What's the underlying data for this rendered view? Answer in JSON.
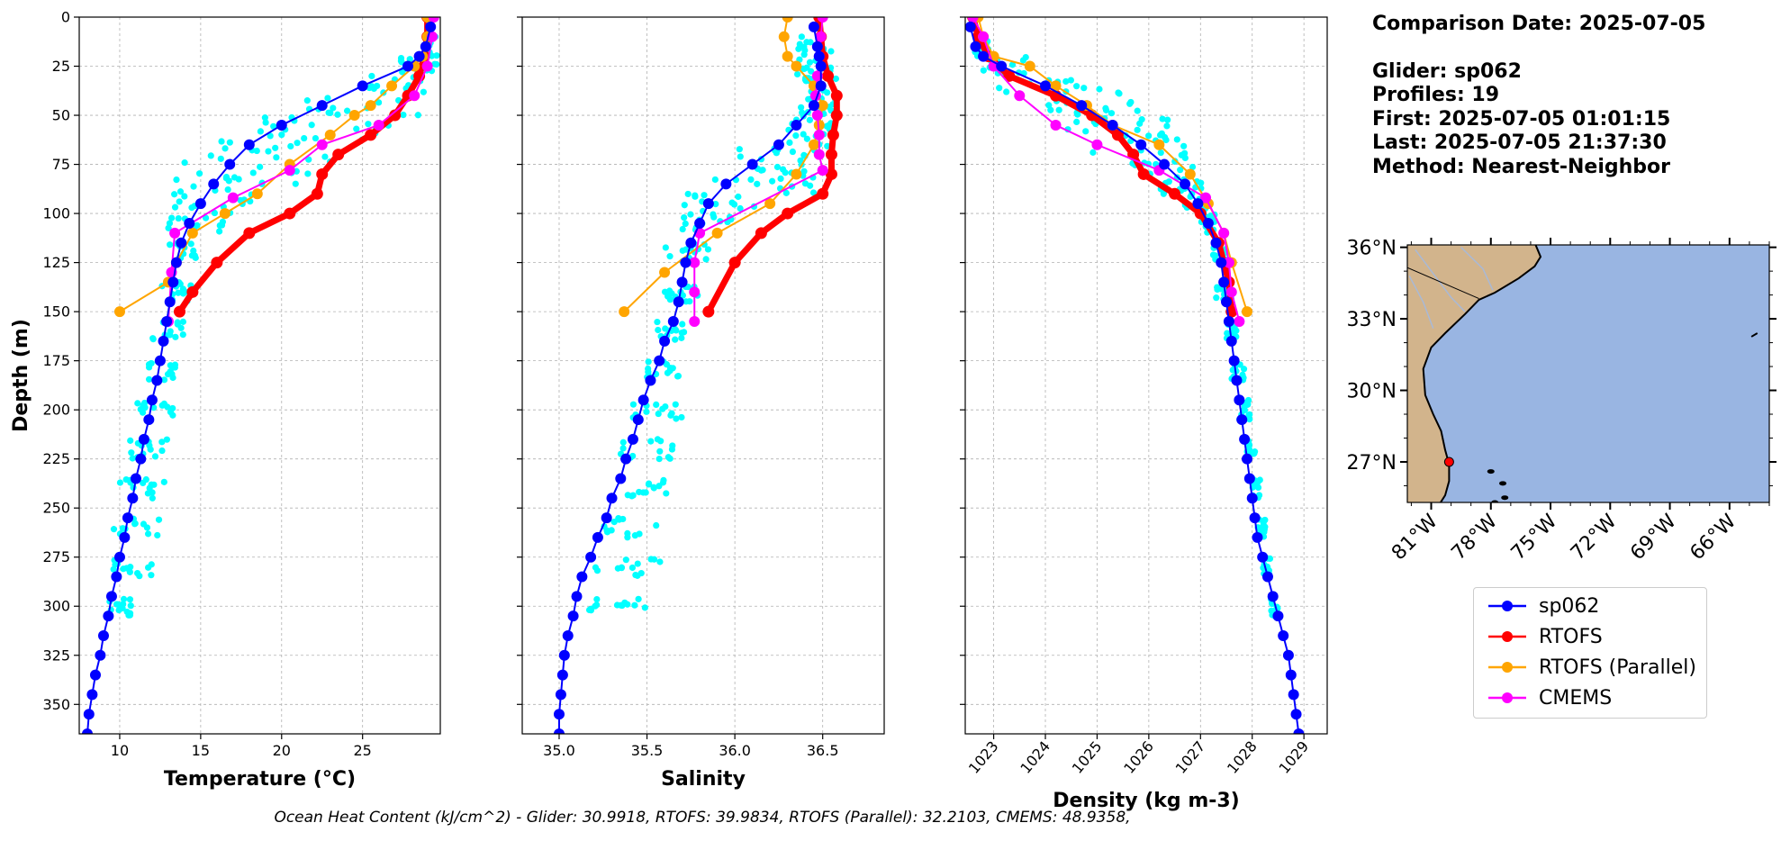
{
  "info": {
    "title": "Comparison Date: 2025-07-05",
    "glider": "Glider: sp062",
    "profiles": "Profiles: 19",
    "first": "First: 2025-07-05 01:01:15",
    "last": "Last: 2025-07-05 21:37:30",
    "method": "Method: Nearest-Neighbor"
  },
  "footer": "Ocean Heat Content (kJ/cm^2) - Glider: 30.9918,  RTOFS: 39.9834,  RTOFS (Parallel): 32.2103,  CMEMS: 48.9358,",
  "legend": [
    {
      "label": "sp062",
      "color": "#0000ff"
    },
    {
      "label": "RTOFS",
      "color": "#ff0000"
    },
    {
      "label": "RTOFS (Parallel)",
      "color": "#ffa500"
    },
    {
      "label": "CMEMS",
      "color": "#ff00ff"
    }
  ],
  "colors": {
    "raw": "#00ffff",
    "land": "#d2b48c",
    "ocean": "#99b5e2",
    "grid": "#b0b0b0"
  },
  "chart_data": [
    {
      "type": "line",
      "xlabel": "Temperature (°C)",
      "ylabel": "Depth (m)",
      "xlim": [
        7.5,
        29.8
      ],
      "ylim": [
        365,
        0
      ],
      "xticks": [
        10,
        15,
        20,
        25
      ],
      "yticks": [
        0,
        25,
        50,
        75,
        100,
        125,
        150,
        175,
        200,
        225,
        250,
        275,
        300,
        325,
        350
      ],
      "raw_envelope": {
        "depths": [
          15,
          25,
          35,
          45,
          55,
          65,
          75,
          85,
          95,
          105,
          120,
          140,
          160,
          180,
          200,
          220,
          240,
          260,
          280,
          300
        ],
        "min": [
          28.8,
          27.0,
          24.5,
          20.5,
          17.5,
          15.5,
          14.0,
          13.5,
          13.2,
          13.0,
          12.8,
          12.6,
          12.0,
          11.5,
          11.0,
          10.5,
          10.0,
          9.6,
          9.3,
          9.3
        ],
        "max": [
          29.6,
          29.6,
          29.5,
          28.5,
          27.0,
          26.0,
          23.0,
          21.0,
          18.5,
          16.5,
          15.0,
          14.5,
          14.0,
          13.5,
          13.3,
          13.0,
          12.8,
          12.5,
          12.0,
          10.8
        ]
      },
      "series": [
        {
          "name": "sp062",
          "x": [
            29.2,
            28.9,
            28.5,
            27.8,
            25.0,
            22.5,
            20.0,
            18.0,
            16.8,
            15.8,
            15.0,
            14.3,
            13.8,
            13.5,
            13.3,
            13.1,
            12.9,
            12.7,
            12.5,
            12.3,
            12.0,
            11.8,
            11.5,
            11.3,
            11.0,
            10.8,
            10.5,
            10.3,
            10.0,
            9.8,
            9.5,
            9.3,
            9.0,
            8.8,
            8.5,
            8.3,
            8.1,
            8.0,
            7.9
          ],
          "depth": [
            5,
            15,
            20,
            25,
            35,
            45,
            55,
            65,
            75,
            85,
            95,
            105,
            115,
            125,
            135,
            145,
            155,
            165,
            175,
            185,
            195,
            205,
            215,
            225,
            235,
            245,
            255,
            265,
            275,
            285,
            295,
            305,
            315,
            325,
            335,
            345,
            355,
            365,
            375
          ]
        },
        {
          "name": "RTOFS",
          "x": [
            29.0,
            29.0,
            28.8,
            28.5,
            27.8,
            27.0,
            25.5,
            23.5,
            22.5,
            22.2,
            20.5,
            18.0,
            16.0,
            14.5,
            13.7
          ],
          "depth": [
            0,
            10,
            20,
            30,
            40,
            50,
            60,
            70,
            80,
            90,
            100,
            110,
            125,
            140,
            150
          ]
        },
        {
          "name": "RTOFS (Parallel)",
          "x": [
            29.0,
            29.0,
            28.7,
            28.2,
            26.8,
            25.5,
            24.5,
            23.0,
            20.5,
            18.5,
            16.5,
            14.5,
            13.5,
            13.0,
            10.0
          ],
          "depth": [
            0,
            10,
            20,
            25,
            35,
            45,
            50,
            60,
            75,
            90,
            100,
            110,
            125,
            135,
            150
          ]
        },
        {
          "name": "CMEMS",
          "x": [
            29.4,
            29.3,
            29.0,
            28.2,
            26.0,
            22.5,
            20.5,
            17.0,
            13.4,
            13.2,
            13.0
          ],
          "depth": [
            0,
            10,
            25,
            40,
            55,
            65,
            78,
            92,
            110,
            130,
            155
          ]
        }
      ]
    },
    {
      "type": "line",
      "xlabel": "Salinity",
      "ylabel": "",
      "xlim": [
        34.79,
        36.85
      ],
      "ylim": [
        365,
        0
      ],
      "xticks": [
        35.0,
        35.5,
        36.0,
        36.5
      ],
      "yticks": [
        0,
        25,
        50,
        75,
        100,
        125,
        150,
        175,
        200,
        225,
        250,
        275,
        300,
        325,
        350
      ],
      "raw_envelope": {
        "depths": [
          15,
          25,
          35,
          45,
          55,
          65,
          75,
          85,
          95,
          105,
          120,
          140,
          160,
          180,
          200,
          220,
          240,
          260,
          280,
          300
        ],
        "min": [
          36.35,
          36.35,
          36.4,
          36.35,
          36.3,
          36.0,
          35.9,
          35.8,
          35.7,
          35.65,
          35.6,
          35.6,
          35.55,
          35.5,
          35.4,
          35.35,
          35.3,
          35.25,
          35.2,
          35.15
        ],
        "max": [
          36.55,
          36.55,
          36.6,
          36.6,
          36.55,
          36.55,
          36.5,
          36.45,
          36.3,
          36.0,
          35.85,
          35.8,
          35.75,
          35.7,
          35.7,
          35.65,
          35.62,
          35.6,
          35.58,
          35.5
        ]
      },
      "series": [
        {
          "name": "sp062",
          "x": [
            36.45,
            36.47,
            36.48,
            36.49,
            36.49,
            36.45,
            36.35,
            36.25,
            36.1,
            35.95,
            35.85,
            35.8,
            35.75,
            35.72,
            35.7,
            35.68,
            35.65,
            35.6,
            35.57,
            35.52,
            35.48,
            35.45,
            35.42,
            35.38,
            35.35,
            35.3,
            35.27,
            35.22,
            35.18,
            35.13,
            35.1,
            35.08,
            35.05,
            35.03,
            35.02,
            35.01,
            35.0,
            35.0,
            35.0
          ],
          "depth": [
            5,
            15,
            20,
            25,
            35,
            45,
            55,
            65,
            75,
            85,
            95,
            105,
            115,
            125,
            135,
            145,
            155,
            165,
            175,
            185,
            195,
            205,
            215,
            225,
            235,
            245,
            255,
            265,
            275,
            285,
            295,
            305,
            315,
            325,
            335,
            345,
            355,
            365,
            375
          ]
        },
        {
          "name": "RTOFS",
          "x": [
            36.48,
            36.49,
            36.5,
            36.53,
            36.58,
            36.58,
            36.56,
            36.55,
            36.55,
            36.5,
            36.3,
            36.15,
            36.0,
            35.85
          ],
          "depth": [
            0,
            10,
            20,
            30,
            40,
            50,
            60,
            70,
            80,
            90,
            100,
            110,
            125,
            150
          ]
        },
        {
          "name": "RTOFS (Parallel)",
          "x": [
            36.3,
            36.28,
            36.3,
            36.35,
            36.45,
            36.5,
            36.48,
            36.45,
            36.35,
            36.2,
            35.9,
            35.6,
            35.37
          ],
          "depth": [
            0,
            10,
            20,
            25,
            35,
            45,
            55,
            65,
            80,
            95,
            110,
            130,
            150
          ]
        },
        {
          "name": "CMEMS",
          "x": [
            36.5,
            36.49,
            36.48,
            36.47,
            36.46,
            36.47,
            36.48,
            36.48,
            36.5,
            35.8,
            35.77,
            35.77,
            35.77
          ],
          "depth": [
            0,
            10,
            20,
            30,
            40,
            50,
            60,
            70,
            78,
            110,
            125,
            140,
            155
          ]
        }
      ]
    },
    {
      "type": "line",
      "xlabel": "Density (kg m-3)",
      "ylabel": "",
      "xlim": [
        1022.45,
        1029.45
      ],
      "ylim": [
        365,
        0
      ],
      "xticks": [
        1023,
        1024,
        1025,
        1026,
        1027,
        1028,
        1029
      ],
      "yticks": [
        0,
        25,
        50,
        75,
        100,
        125,
        150,
        175,
        200,
        225,
        250,
        275,
        300,
        325,
        350
      ],
      "raw_envelope": {
        "depths": [
          15,
          25,
          35,
          45,
          55,
          65,
          75,
          85,
          95,
          105,
          120,
          140,
          160,
          180,
          200,
          220,
          240,
          260,
          280,
          300
        ],
        "min": [
          1022.6,
          1022.75,
          1023.1,
          1023.8,
          1024.4,
          1024.9,
          1025.6,
          1026.2,
          1026.7,
          1027.0,
          1027.2,
          1027.3,
          1027.5,
          1027.6,
          1027.75,
          1027.9,
          1028.0,
          1028.1,
          1028.2,
          1028.35
        ],
        "max": [
          1022.9,
          1023.8,
          1025.5,
          1026.0,
          1026.6,
          1026.8,
          1026.95,
          1027.05,
          1027.2,
          1027.3,
          1027.5,
          1027.6,
          1027.7,
          1027.85,
          1027.95,
          1028.05,
          1028.15,
          1028.25,
          1028.35,
          1028.5
        ]
      },
      "series": [
        {
          "name": "sp062",
          "x": [
            1022.55,
            1022.65,
            1022.8,
            1023.15,
            1024.0,
            1024.7,
            1025.3,
            1025.85,
            1026.3,
            1026.7,
            1026.95,
            1027.15,
            1027.3,
            1027.4,
            1027.45,
            1027.5,
            1027.55,
            1027.6,
            1027.65,
            1027.7,
            1027.75,
            1027.8,
            1027.85,
            1027.9,
            1027.95,
            1028.0,
            1028.05,
            1028.1,
            1028.2,
            1028.3,
            1028.4,
            1028.5,
            1028.6,
            1028.7,
            1028.75,
            1028.8,
            1028.85,
            1028.9,
            1028.95
          ],
          "depth": [
            5,
            15,
            20,
            25,
            35,
            45,
            55,
            65,
            75,
            85,
            95,
            105,
            115,
            125,
            135,
            145,
            155,
            165,
            175,
            185,
            195,
            205,
            215,
            225,
            235,
            245,
            255,
            265,
            275,
            285,
            295,
            305,
            315,
            325,
            335,
            345,
            355,
            365,
            375
          ]
        },
        {
          "name": "RTOFS",
          "x": [
            1022.6,
            1022.7,
            1022.9,
            1023.3,
            1024.2,
            1024.9,
            1025.4,
            1025.7,
            1025.9,
            1026.5,
            1027.0,
            1027.35,
            1027.55,
            1027.6
          ],
          "depth": [
            0,
            10,
            20,
            30,
            40,
            50,
            60,
            70,
            80,
            90,
            100,
            115,
            135,
            150
          ]
        },
        {
          "name": "RTOFS (Parallel)",
          "x": [
            1022.7,
            1022.8,
            1023.0,
            1023.7,
            1024.2,
            1024.8,
            1025.3,
            1026.2,
            1026.8,
            1027.15,
            1027.45,
            1027.6,
            1027.9
          ],
          "depth": [
            0,
            10,
            20,
            25,
            35,
            45,
            55,
            65,
            80,
            95,
            110,
            125,
            150
          ]
        },
        {
          "name": "CMEMS",
          "x": [
            1022.6,
            1022.8,
            1023.0,
            1023.5,
            1024.2,
            1025.0,
            1026.2,
            1027.1,
            1027.45,
            1027.55,
            1027.6,
            1027.75
          ],
          "depth": [
            0,
            10,
            25,
            40,
            55,
            65,
            78,
            92,
            110,
            125,
            140,
            155
          ]
        }
      ]
    }
  ],
  "map": {
    "lat_ticks": [
      "36°N",
      "33°N",
      "30°N",
      "27°N"
    ],
    "lon_ticks": [
      "81°W",
      "78°W",
      "75°W",
      "72°W",
      "69°W",
      "66°W"
    ],
    "glider_marker": {
      "lon": -80.1,
      "lat": 27.0
    }
  }
}
